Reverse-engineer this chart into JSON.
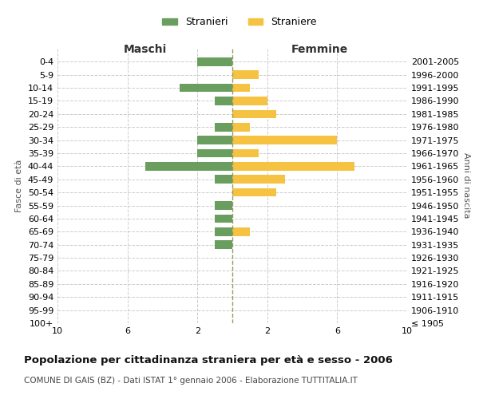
{
  "age_groups": [
    "100+",
    "95-99",
    "90-94",
    "85-89",
    "80-84",
    "75-79",
    "70-74",
    "65-69",
    "60-64",
    "55-59",
    "50-54",
    "45-49",
    "40-44",
    "35-39",
    "30-34",
    "25-29",
    "20-24",
    "15-19",
    "10-14",
    "5-9",
    "0-4"
  ],
  "birth_years": [
    "≤ 1905",
    "1906-1910",
    "1911-1915",
    "1916-1920",
    "1921-1925",
    "1926-1930",
    "1931-1935",
    "1936-1940",
    "1941-1945",
    "1946-1950",
    "1951-1955",
    "1956-1960",
    "1961-1965",
    "1966-1970",
    "1971-1975",
    "1976-1980",
    "1981-1985",
    "1986-1990",
    "1991-1995",
    "1996-2000",
    "2001-2005"
  ],
  "maschi": [
    0,
    0,
    0,
    0,
    0,
    0,
    1,
    1,
    1,
    1,
    0,
    1,
    5,
    2,
    2,
    1,
    0,
    1,
    3,
    0,
    2
  ],
  "femmine": [
    0,
    0,
    0,
    0,
    0,
    0,
    0,
    1,
    0,
    0,
    2.5,
    3,
    7,
    1.5,
    6,
    1,
    2.5,
    2,
    1,
    1.5,
    0
  ],
  "color_maschi": "#6a9e5e",
  "color_femmine": "#f5c242",
  "title": "Popolazione per cittadinanza straniera per età e sesso - 2006",
  "subtitle": "COMUNE DI GAIS (BZ) - Dati ISTAT 1° gennaio 2006 - Elaborazione TUTTITALIA.IT",
  "xlabel_left": "Maschi",
  "xlabel_right": "Femmine",
  "ylabel_left": "Fasce di età",
  "ylabel_right": "Anni di nascita",
  "legend_maschi": "Stranieri",
  "legend_femmine": "Straniere",
  "xlim": 10,
  "grid_color": "#cccccc",
  "background_color": "#ffffff"
}
